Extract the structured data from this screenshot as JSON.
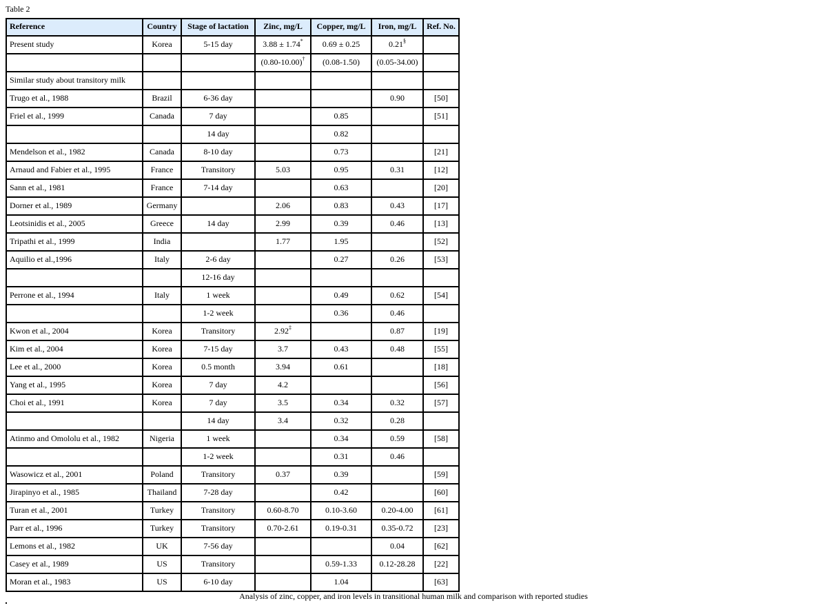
{
  "table_label": "Table 2",
  "caption": "Analysis of zinc, copper, and iron levels in transitional human milk and comparison with reported studies",
  "header_bg": "#dcecfc",
  "columns": [
    "Reference",
    "Country",
    "Stage of lactation",
    "Zinc, mg/L",
    "Copper, mg/L",
    "Iron, mg/L",
    "Ref. No."
  ],
  "rows": [
    [
      {
        "v": "Present study"
      },
      {
        "v": "Korea"
      },
      {
        "v": "5-15 day"
      },
      {
        "v": "3.88 ± 1.74",
        "sup": "*"
      },
      {
        "v": "0.69 ± 0.25"
      },
      {
        "v": "0.21",
        "sup": "§"
      },
      {
        "v": ""
      }
    ],
    [
      {
        "v": ""
      },
      {
        "v": ""
      },
      {
        "v": ""
      },
      {
        "v": "(0.80-10.00)",
        "sup": "†"
      },
      {
        "v": "(0.08-1.50)"
      },
      {
        "v": "(0.05-34.00)"
      },
      {
        "v": ""
      }
    ],
    [
      {
        "v": "Similar study about transitory milk"
      },
      {
        "v": ""
      },
      {
        "v": ""
      },
      {
        "v": ""
      },
      {
        "v": ""
      },
      {
        "v": ""
      },
      {
        "v": ""
      }
    ],
    [
      {
        "v": "Trugo et al., 1988"
      },
      {
        "v": "Brazil"
      },
      {
        "v": "6-36 day"
      },
      {
        "v": ""
      },
      {
        "v": ""
      },
      {
        "v": "0.90"
      },
      {
        "v": "[50]"
      }
    ],
    [
      {
        "v": "Friel et al., 1999"
      },
      {
        "v": "Canada"
      },
      {
        "v": "7 day"
      },
      {
        "v": ""
      },
      {
        "v": "0.85"
      },
      {
        "v": ""
      },
      {
        "v": "[51]"
      }
    ],
    [
      {
        "v": ""
      },
      {
        "v": ""
      },
      {
        "v": "14 day"
      },
      {
        "v": ""
      },
      {
        "v": "0.82"
      },
      {
        "v": ""
      },
      {
        "v": ""
      }
    ],
    [
      {
        "v": "Mendelson et al., 1982"
      },
      {
        "v": "Canada"
      },
      {
        "v": "8-10 day"
      },
      {
        "v": ""
      },
      {
        "v": "0.73"
      },
      {
        "v": ""
      },
      {
        "v": "[21]"
      }
    ],
    [
      {
        "v": "Arnaud and Fabier et al., 1995"
      },
      {
        "v": "France"
      },
      {
        "v": "Transitory"
      },
      {
        "v": "5.03"
      },
      {
        "v": "0.95"
      },
      {
        "v": "0.31"
      },
      {
        "v": "[12]"
      }
    ],
    [
      {
        "v": "Sann et al., 1981"
      },
      {
        "v": "France"
      },
      {
        "v": "7-14 day"
      },
      {
        "v": ""
      },
      {
        "v": "0.63"
      },
      {
        "v": ""
      },
      {
        "v": "[20]"
      }
    ],
    [
      {
        "v": "Dorner et al., 1989"
      },
      {
        "v": "Germany"
      },
      {
        "v": ""
      },
      {
        "v": "2.06"
      },
      {
        "v": "0.83"
      },
      {
        "v": "0.43"
      },
      {
        "v": "[17]"
      }
    ],
    [
      {
        "v": "Leotsinidis et al., 2005"
      },
      {
        "v": "Greece"
      },
      {
        "v": "14 day"
      },
      {
        "v": "2.99"
      },
      {
        "v": "0.39"
      },
      {
        "v": "0.46"
      },
      {
        "v": "[13]"
      }
    ],
    [
      {
        "v": "Tripathi et al., 1999"
      },
      {
        "v": "India"
      },
      {
        "v": ""
      },
      {
        "v": "1.77"
      },
      {
        "v": "1.95"
      },
      {
        "v": ""
      },
      {
        "v": "[52]"
      }
    ],
    [
      {
        "v": "Aquilio et al.,1996"
      },
      {
        "v": "Italy"
      },
      {
        "v": "2-6 day"
      },
      {
        "v": ""
      },
      {
        "v": "0.27"
      },
      {
        "v": "0.26"
      },
      {
        "v": "[53]"
      }
    ],
    [
      {
        "v": ""
      },
      {
        "v": ""
      },
      {
        "v": "12-16 day"
      },
      {
        "v": ""
      },
      {
        "v": ""
      },
      {
        "v": ""
      },
      {
        "v": ""
      }
    ],
    [
      {
        "v": "Perrone et al., 1994"
      },
      {
        "v": "Italy"
      },
      {
        "v": "1 week"
      },
      {
        "v": ""
      },
      {
        "v": "0.49"
      },
      {
        "v": "0.62"
      },
      {
        "v": "[54]"
      }
    ],
    [
      {
        "v": ""
      },
      {
        "v": ""
      },
      {
        "v": "1-2 week"
      },
      {
        "v": ""
      },
      {
        "v": "0.36"
      },
      {
        "v": "0.46"
      },
      {
        "v": ""
      }
    ],
    [
      {
        "v": "Kwon et al., 2004"
      },
      {
        "v": "Korea"
      },
      {
        "v": "Transitory"
      },
      {
        "v": "2.92",
        "sup": "‡"
      },
      {
        "v": ""
      },
      {
        "v": "0.87"
      },
      {
        "v": "[19]"
      }
    ],
    [
      {
        "v": "Kim et al., 2004"
      },
      {
        "v": "Korea"
      },
      {
        "v": "7-15 day"
      },
      {
        "v": "3.7"
      },
      {
        "v": "0.43"
      },
      {
        "v": "0.48"
      },
      {
        "v": "[55]"
      }
    ],
    [
      {
        "v": "Lee et al., 2000"
      },
      {
        "v": "Korea"
      },
      {
        "v": "0.5 month"
      },
      {
        "v": "3.94"
      },
      {
        "v": "0.61"
      },
      {
        "v": ""
      },
      {
        "v": "[18]"
      }
    ],
    [
      {
        "v": "Yang et al., 1995"
      },
      {
        "v": "Korea"
      },
      {
        "v": "7 day"
      },
      {
        "v": "4.2"
      },
      {
        "v": ""
      },
      {
        "v": ""
      },
      {
        "v": "[56]"
      }
    ],
    [
      {
        "v": "Choi et al., 1991"
      },
      {
        "v": "Korea"
      },
      {
        "v": "7 day"
      },
      {
        "v": "3.5"
      },
      {
        "v": "0.34"
      },
      {
        "v": "0.32"
      },
      {
        "v": "[57]"
      }
    ],
    [
      {
        "v": ""
      },
      {
        "v": ""
      },
      {
        "v": "14 day"
      },
      {
        "v": "3.4"
      },
      {
        "v": "0.32"
      },
      {
        "v": "0.28"
      },
      {
        "v": ""
      }
    ],
    [
      {
        "v": "Atinmo and Omololu et al., 1982"
      },
      {
        "v": "Nigeria"
      },
      {
        "v": "1 week"
      },
      {
        "v": ""
      },
      {
        "v": "0.34"
      },
      {
        "v": "0.59"
      },
      {
        "v": "[58]"
      }
    ],
    [
      {
        "v": ""
      },
      {
        "v": ""
      },
      {
        "v": "1-2 week"
      },
      {
        "v": ""
      },
      {
        "v": "0.31"
      },
      {
        "v": "0.46"
      },
      {
        "v": ""
      }
    ],
    [
      {
        "v": "Wasowicz et al., 2001"
      },
      {
        "v": "Poland"
      },
      {
        "v": "Transitory"
      },
      {
        "v": "0.37"
      },
      {
        "v": "0.39"
      },
      {
        "v": ""
      },
      {
        "v": "[59]"
      }
    ],
    [
      {
        "v": "Jirapinyo et al., 1985"
      },
      {
        "v": "Thailand"
      },
      {
        "v": "7-28 day"
      },
      {
        "v": ""
      },
      {
        "v": "0.42"
      },
      {
        "v": ""
      },
      {
        "v": "[60]"
      }
    ],
    [
      {
        "v": "Turan et al., 2001"
      },
      {
        "v": "Turkey"
      },
      {
        "v": "Transitory"
      },
      {
        "v": "0.60-8.70"
      },
      {
        "v": "0.10-3.60"
      },
      {
        "v": "0.20-4.00"
      },
      {
        "v": "[61]"
      }
    ],
    [
      {
        "v": "Parr et al., 1996"
      },
      {
        "v": "Turkey"
      },
      {
        "v": "Transitory"
      },
      {
        "v": "0.70-2.61"
      },
      {
        "v": "0.19-0.31"
      },
      {
        "v": "0.35-0.72"
      },
      {
        "v": "[23]"
      }
    ],
    [
      {
        "v": "Lemons et al., 1982"
      },
      {
        "v": "UK"
      },
      {
        "v": "7-56 day"
      },
      {
        "v": ""
      },
      {
        "v": ""
      },
      {
        "v": "0.04"
      },
      {
        "v": "[62]"
      }
    ],
    [
      {
        "v": "Casey et al., 1989"
      },
      {
        "v": "US"
      },
      {
        "v": "Transitory"
      },
      {
        "v": ""
      },
      {
        "v": "0.59-1.33"
      },
      {
        "v": "0.12-28.28"
      },
      {
        "v": "[22]"
      }
    ],
    [
      {
        "v": "Moran et al., 1983"
      },
      {
        "v": "US"
      },
      {
        "v": "6-10 day"
      },
      {
        "v": ""
      },
      {
        "v": "1.04"
      },
      {
        "v": ""
      },
      {
        "v": "[63]"
      }
    ]
  ]
}
